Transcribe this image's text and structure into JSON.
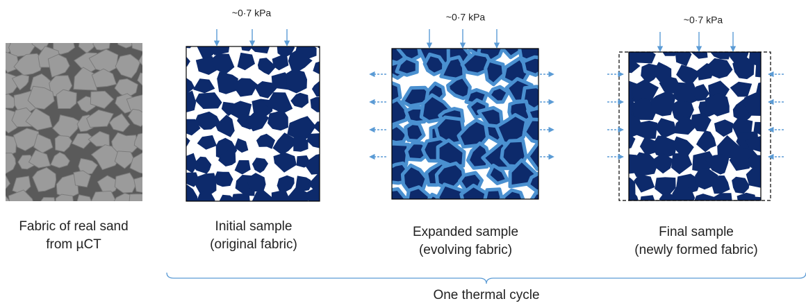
{
  "panels": [
    {
      "caption": [
        "Fabric of real sand",
        "from µCT"
      ]
    },
    {
      "load": "~0·7 kPa",
      "caption": [
        "Initial sample",
        "(original fabric)"
      ]
    },
    {
      "load": "~0·7 kPa",
      "caption": [
        "Expanded sample",
        "(evolving fabric)"
      ]
    },
    {
      "load": "~0·7 kPa",
      "caption": [
        "Final sample",
        "(newly formed fabric)"
      ]
    }
  ],
  "cycle_label": "One thermal cycle"
}
